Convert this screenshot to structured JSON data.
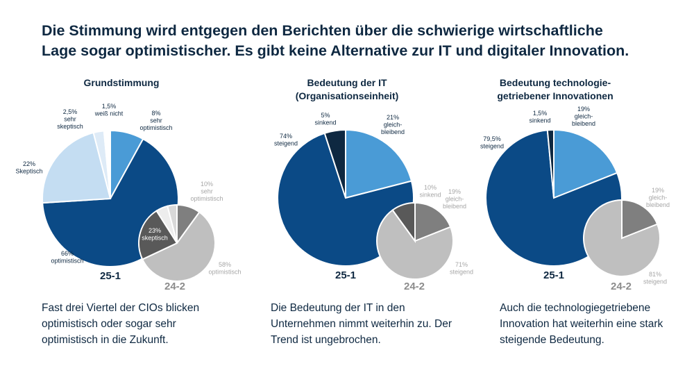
{
  "headline": {
    "line1": "Die Stimmung wird entgegen den Berichten über die schwierige wirtschaftliche",
    "line2": "Lage sogar optimistischer. Es gibt keine Alternative zur IT und digitaler Innovation."
  },
  "colors": {
    "dark_navy": "#0e2841",
    "blue_dark": "#0b4a86",
    "blue_mid": "#4a9bd6",
    "blue_light": "#c4ddf2",
    "blue_pale": "#deebf7",
    "grey_dark": "#595959",
    "grey_mid": "#7f7f7f",
    "grey_light": "#bfbfbf",
    "grey_pale": "#d9d9d9",
    "grey_white": "#ededed"
  },
  "panels": [
    {
      "title": [
        "Grundstimmung"
      ],
      "caption": [
        "Fast drei Viertel der CIOs blicken",
        "optimistisch oder sogar sehr",
        "optimistisch in die Zukunft."
      ]
    },
    {
      "title": [
        "Bedeutung der IT",
        "(Organisationseinheit)"
      ],
      "caption": [
        "Die Bedeutung der IT in den",
        "Unternehmen nimmt weiterhin zu. Der",
        "Trend ist ungebrochen."
      ]
    },
    {
      "title": [
        "Bedeutung technologie-",
        "getriebener Innovationen"
      ],
      "caption": [
        "Auch die technologiegetriebene",
        "Innovation hat weiterhin eine stark",
        "steigende Bedeutung."
      ]
    }
  ],
  "chart_data": [
    {
      "type": "pie",
      "title": "Grundstimmung",
      "series": [
        {
          "name": "25-1",
          "slices": [
            {
              "label": "sehr optimistisch",
              "value": 8,
              "value_label": "8%",
              "label_lines": [
                "8%",
                "sehr",
                "optimistisch"
              ],
              "color": "#4a9bd6"
            },
            {
              "label": "optimistisch",
              "value": 66,
              "value_label": "66%",
              "label_lines": [
                "66%",
                "optimistisch"
              ],
              "color": "#0b4a86"
            },
            {
              "label": "Skeptisch",
              "value": 22,
              "value_label": "22%",
              "label_lines": [
                "22%",
                "Skeptisch"
              ],
              "color": "#c4ddf2"
            },
            {
              "label": "sehr skeptisch",
              "value": 2.5,
              "value_label": "2,5%",
              "label_lines": [
                "2,5%",
                "sehr",
                "skeptisch"
              ],
              "color": "#deebf7"
            },
            {
              "label": "weiß nicht",
              "value": 1.5,
              "value_label": "1,5%",
              "label_lines": [
                "1,5%",
                "weiß nicht"
              ],
              "color": "#ffffff"
            }
          ]
        },
        {
          "name": "24-2",
          "slices": [
            {
              "label": "sehr optimistisch",
              "value": 10,
              "value_label": "10%",
              "label_lines": [
                "10%",
                "sehr",
                "optimistisch"
              ],
              "color": "#7f7f7f"
            },
            {
              "label": "optimistisch",
              "value": 58,
              "value_label": "58%",
              "label_lines": [
                "58%",
                "optimistisch"
              ],
              "color": "#bfbfbf"
            },
            {
              "label": "skeptisch",
              "value": 23,
              "value_label": "23%",
              "label_lines": [
                "23%",
                "skeptisch"
              ],
              "color": "#595959"
            },
            {
              "label": "sehr skeptisch",
              "value": 5,
              "value_label": "",
              "label_lines": [],
              "color": "#ededed"
            },
            {
              "label": "weiß nicht",
              "value": 4,
              "value_label": "",
              "label_lines": [],
              "color": "#d9d9d9"
            }
          ]
        }
      ]
    },
    {
      "type": "pie",
      "title": "Bedeutung der IT (Organisationseinheit)",
      "series": [
        {
          "name": "25-1",
          "slices": [
            {
              "label": "gleichbleibend",
              "value": 21,
              "value_label": "21%",
              "label_lines": [
                "21%",
                "gleich-",
                "bleibend"
              ],
              "color": "#4a9bd6"
            },
            {
              "label": "steigend",
              "value": 74,
              "value_label": "74%",
              "label_lines": [
                "74%",
                "steigend"
              ],
              "color": "#0b4a86"
            },
            {
              "label": "sinkend",
              "value": 5,
              "value_label": "5%",
              "label_lines": [
                "5%",
                "sinkend"
              ],
              "color": "#0e2841"
            }
          ]
        },
        {
          "name": "24-2",
          "slices": [
            {
              "label": "gleichbleibend",
              "value": 19,
              "value_label": "19%",
              "label_lines": [
                "19%",
                "gleich-",
                "bleibend"
              ],
              "color": "#7f7f7f"
            },
            {
              "label": "steigend",
              "value": 71,
              "value_label": "71%",
              "label_lines": [
                "71%",
                "steigend"
              ],
              "color": "#bfbfbf"
            },
            {
              "label": "sinkend",
              "value": 10,
              "value_label": "10%",
              "label_lines": [
                "10%",
                "sinkend"
              ],
              "color": "#595959"
            }
          ]
        }
      ]
    },
    {
      "type": "pie",
      "title": "Bedeutung technologiegetriebener Innovationen",
      "series": [
        {
          "name": "25-1",
          "slices": [
            {
              "label": "gleichbleibend",
              "value": 19,
              "value_label": "19%",
              "label_lines": [
                "19%",
                "gleich-",
                "bleibend"
              ],
              "color": "#4a9bd6"
            },
            {
              "label": "steigend",
              "value": 79.5,
              "value_label": "79,5%",
              "label_lines": [
                "79,5%",
                "steigend"
              ],
              "color": "#0b4a86"
            },
            {
              "label": "sinkend",
              "value": 1.5,
              "value_label": "1,5%",
              "label_lines": [
                "1,5%",
                "sinkend"
              ],
              "color": "#0e2841"
            }
          ]
        },
        {
          "name": "24-2",
          "slices": [
            {
              "label": "gleichbleibend",
              "value": 19,
              "value_label": "19%",
              "label_lines": [
                "19%",
                "gleich-",
                "bleibend"
              ],
              "color": "#7f7f7f"
            },
            {
              "label": "steigend",
              "value": 81,
              "value_label": "81%",
              "label_lines": [
                "81%",
                "steigend"
              ],
              "color": "#bfbfbf"
            }
          ]
        }
      ]
    }
  ]
}
